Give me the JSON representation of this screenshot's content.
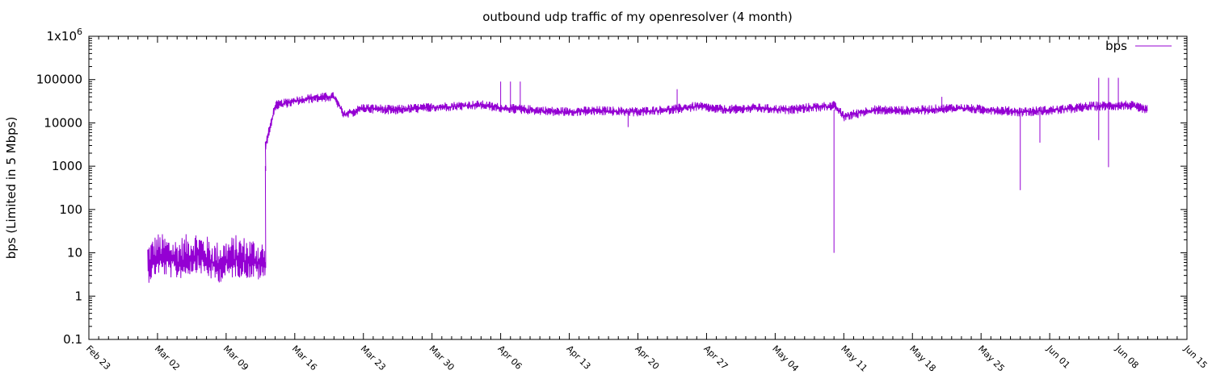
{
  "chart_data": {
    "type": "line",
    "title": "outbound udp traffic of my openresolver (4 month)",
    "ylabel": "bps (Limited in 5 Mbps)",
    "xlabel": "",
    "yscale": "log",
    "ylim": [
      0.1,
      1000000
    ],
    "y_ticks": [
      {
        "value": 0.1,
        "label": "0.1"
      },
      {
        "value": 1,
        "label": "1"
      },
      {
        "value": 10,
        "label": "10"
      },
      {
        "value": 100,
        "label": "100"
      },
      {
        "value": 1000,
        "label": "1000"
      },
      {
        "value": 10000,
        "label": "10000"
      },
      {
        "value": 100000,
        "label": "100000"
      },
      {
        "value": 1000000,
        "label": "1x10",
        "sup": "6"
      }
    ],
    "xlim": [
      "2014-02-23",
      "2014-06-15"
    ],
    "x_ticks": [
      "Feb 23",
      "Mar 02",
      "Mar 09",
      "Mar 16",
      "Mar 23",
      "Mar 30",
      "Apr 06",
      "Apr 13",
      "Apr 20",
      "Apr 27",
      "May 04",
      "May 11",
      "May 18",
      "May 25",
      "Jun 01",
      "Jun 08",
      "Jun 15"
    ],
    "grid": false,
    "legend": "top-right",
    "series": [
      {
        "name": "bps",
        "color": "#9400d3",
        "points": [
          [
            "2014-02-29",
            5
          ],
          [
            "2014-03-02",
            8
          ],
          [
            "2014-03-04",
            6
          ],
          [
            "2014-03-06",
            9
          ],
          [
            "2014-03-08",
            5
          ],
          [
            "2014-03-10",
            7
          ],
          [
            "2014-03-12",
            6
          ],
          [
            "2014-03-13",
            5
          ],
          [
            "2014-03-13",
            1000
          ],
          [
            "2014-03-13",
            3000
          ],
          [
            "2014-03-14",
            25000
          ],
          [
            "2014-03-16",
            32000
          ],
          [
            "2014-03-18",
            38000
          ],
          [
            "2014-03-20",
            40000
          ],
          [
            "2014-03-21",
            15000
          ],
          [
            "2014-03-23",
            22000
          ],
          [
            "2014-03-26",
            20000
          ],
          [
            "2014-03-29",
            22000
          ],
          [
            "2014-04-01",
            24000
          ],
          [
            "2014-04-04",
            26000
          ],
          [
            "2014-04-06",
            22000
          ],
          [
            "2014-04-09",
            20000
          ],
          [
            "2014-04-12",
            18000
          ],
          [
            "2014-04-16",
            19000
          ],
          [
            "2014-04-20",
            18000
          ],
          [
            "2014-04-23",
            20000
          ],
          [
            "2014-04-26",
            24000
          ],
          [
            "2014-04-29",
            20000
          ],
          [
            "2014-05-02",
            22000
          ],
          [
            "2014-05-05",
            20000
          ],
          [
            "2014-05-08",
            23000
          ],
          [
            "2014-05-10",
            25000
          ],
          [
            "2014-05-11",
            14000
          ],
          [
            "2014-05-14",
            20000
          ],
          [
            "2014-05-18",
            19000
          ],
          [
            "2014-05-22",
            22000
          ],
          [
            "2014-05-26",
            20000
          ],
          [
            "2014-05-29",
            18000
          ],
          [
            "2014-06-02",
            20000
          ],
          [
            "2014-06-05",
            24000
          ],
          [
            "2014-06-07",
            25000
          ],
          [
            "2014-06-09",
            26000
          ],
          [
            "2014-06-11",
            20000
          ]
        ],
        "spikes": [
          [
            "2014-04-06",
            90000
          ],
          [
            "2014-04-07",
            90000
          ],
          [
            "2014-04-08",
            90000
          ],
          [
            "2014-04-24",
            60000
          ],
          [
            "2014-05-10",
            10
          ],
          [
            "2014-05-29",
            280
          ],
          [
            "2014-05-31",
            3500
          ],
          [
            "2014-06-06",
            110000
          ],
          [
            "2014-06-06",
            4000
          ],
          [
            "2014-06-07",
            110000
          ],
          [
            "2014-06-07",
            950
          ],
          [
            "2014-06-08",
            110000
          ],
          [
            "2014-04-19",
            8000
          ],
          [
            "2014-05-21",
            40000
          ]
        ]
      }
    ]
  }
}
